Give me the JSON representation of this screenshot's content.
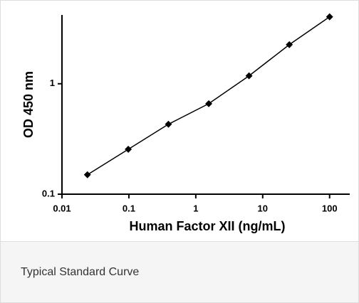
{
  "chart_data": {
    "type": "line",
    "xlabel": "Human Factor XII (ng/mL)",
    "ylabel": "OD 450 nm",
    "x": [
      0.024,
      0.098,
      0.39,
      1.5625,
      6.25,
      25,
      100
    ],
    "series": [
      {
        "color": "#000000",
        "values": [
          0.15,
          0.255,
          0.43,
          0.66,
          1.18,
          2.26,
          4.04
        ]
      }
    ],
    "xlim": [
      0.01,
      200
    ],
    "ylim": [
      0.1,
      4.2
    ],
    "xticks": [
      0.01,
      0.1,
      1,
      10,
      100
    ],
    "yticks": [
      0.1,
      1
    ],
    "xscale": "log",
    "yscale": "log",
    "grid": false
  },
  "caption": "Typical Standard Curve"
}
